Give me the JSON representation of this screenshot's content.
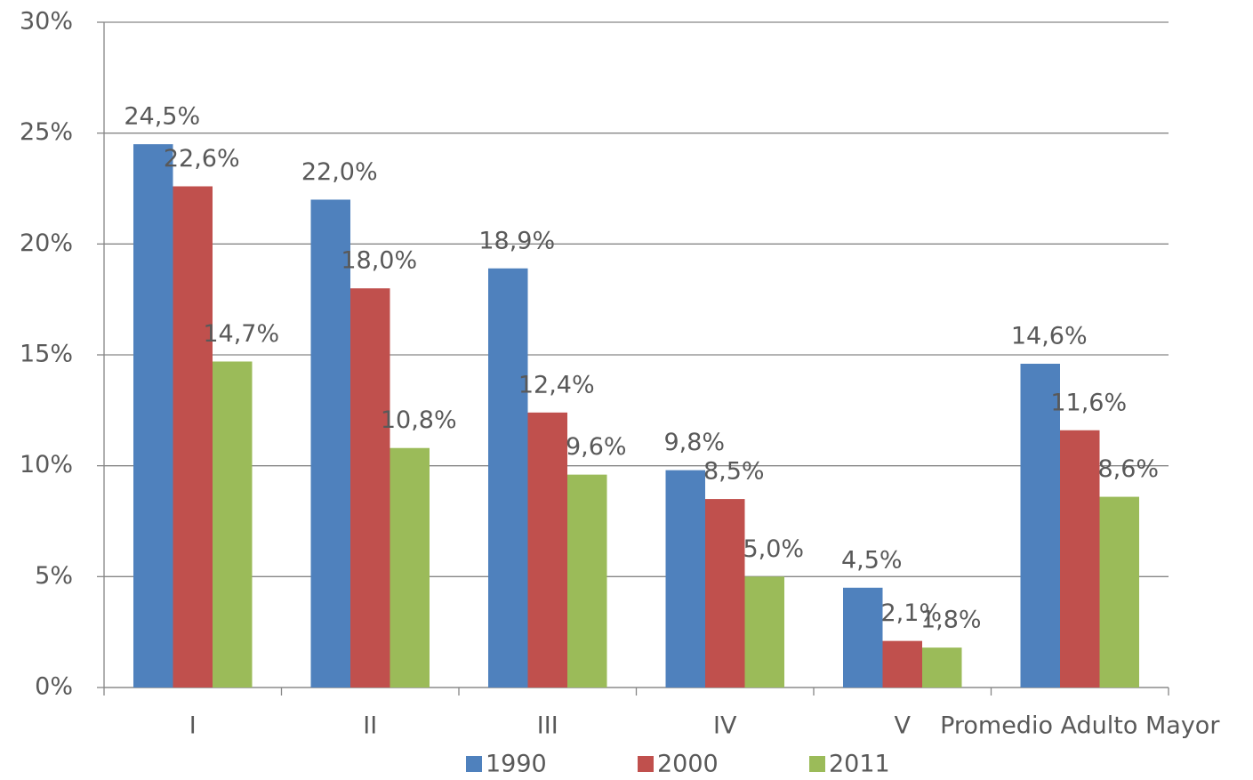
{
  "chart_data": {
    "type": "bar",
    "categories": [
      "I",
      "II",
      "III",
      "IV",
      "V",
      "Promedio Adulto Mayor"
    ],
    "series": [
      {
        "name": "1990",
        "color": "#4f81bd",
        "values": [
          24.5,
          22.0,
          18.9,
          9.8,
          4.5,
          14.6
        ],
        "value_labels": [
          "24,5%",
          "22,0%",
          "18,9%",
          "9,8%",
          "4,5%",
          "14,6%"
        ]
      },
      {
        "name": "2000",
        "color": "#c0504d",
        "values": [
          22.6,
          18.0,
          12.4,
          8.5,
          2.1,
          11.6
        ],
        "value_labels": [
          "22,6%",
          "18,0%",
          "12,4%",
          "8,5%",
          "2,1%",
          "11,6%"
        ]
      },
      {
        "name": "2011",
        "color": "#9bbb59",
        "values": [
          14.7,
          10.8,
          9.6,
          5.0,
          1.8,
          8.6
        ],
        "value_labels": [
          "14,7%",
          "10,8%",
          "9,6%",
          "5,0%",
          "1,8%",
          "8,6%"
        ]
      }
    ],
    "ylim": [
      0,
      30
    ],
    "yticks": [
      {
        "value": 0,
        "label": "0%"
      },
      {
        "value": 5,
        "label": "5%"
      },
      {
        "value": 10,
        "label": "10%"
      },
      {
        "value": 15,
        "label": "15%"
      },
      {
        "value": 20,
        "label": "20%"
      },
      {
        "value": 25,
        "label": "25%"
      },
      {
        "value": 30,
        "label": "30%"
      }
    ],
    "grid": true,
    "legend": "bottom"
  }
}
